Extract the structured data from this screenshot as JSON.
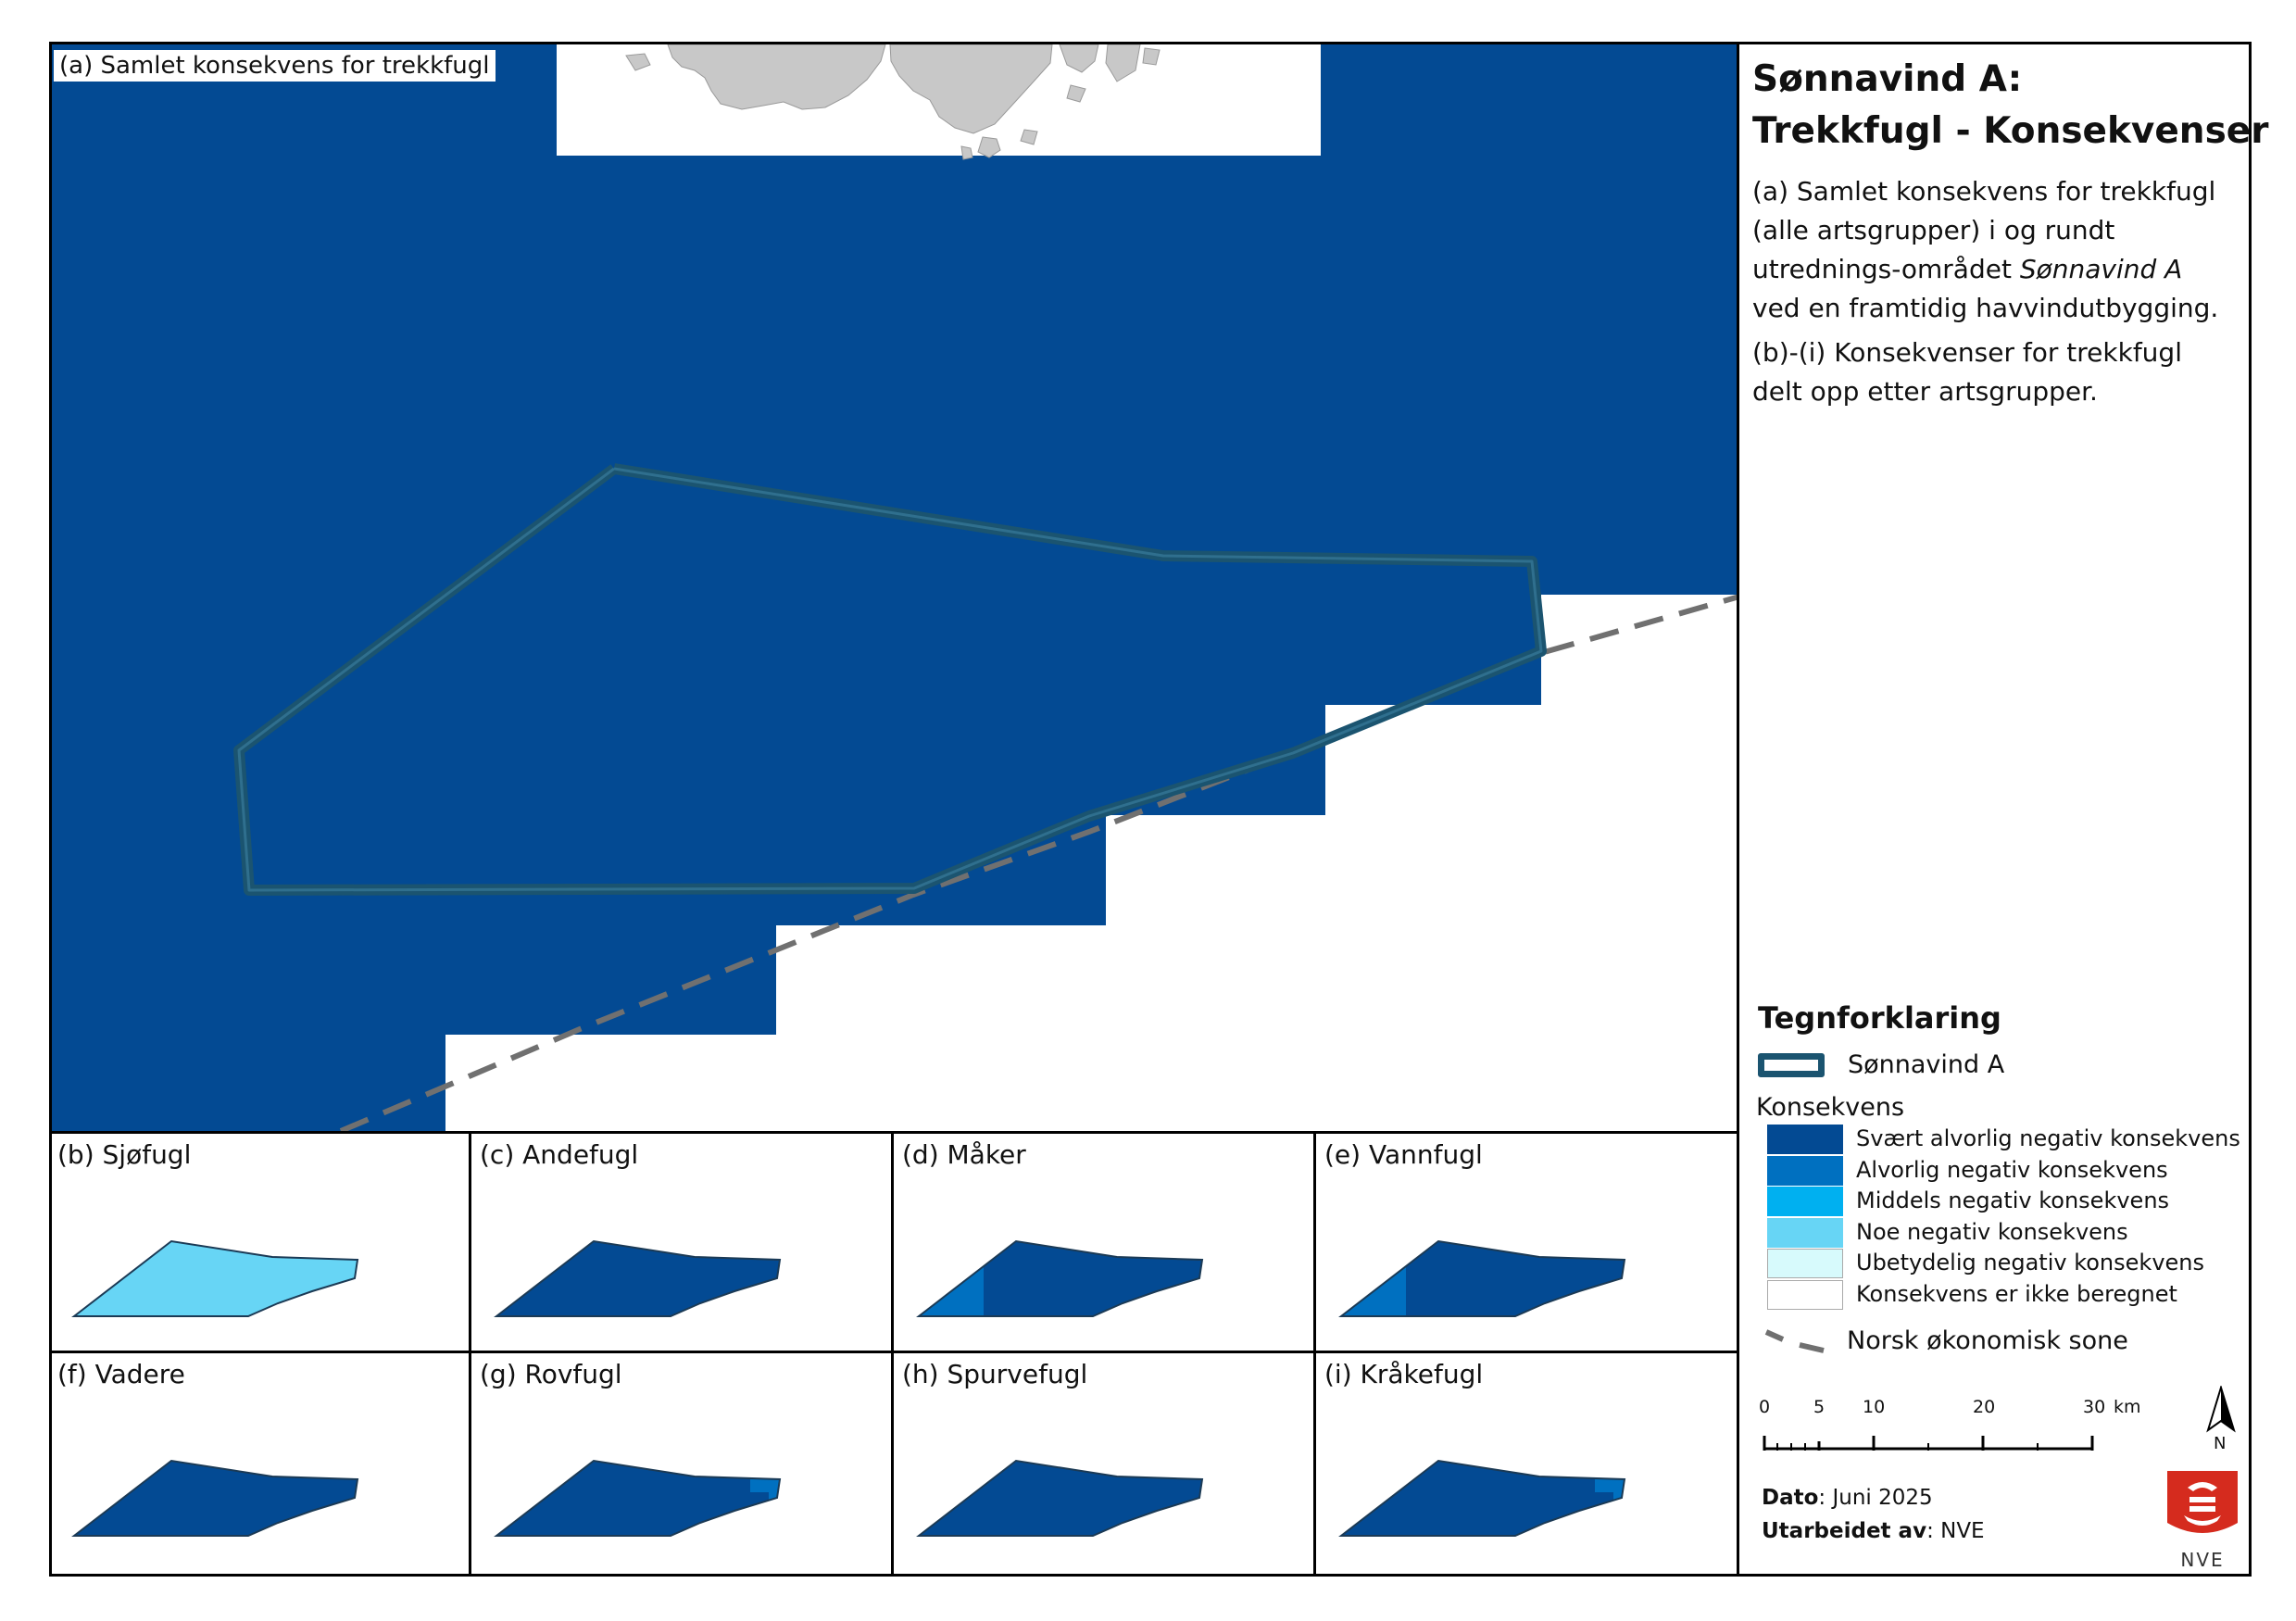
{
  "title_line1": "Sønnavind A:",
  "title_line2": "Trekkfugl - Konsekvenser",
  "description": {
    "p1_part1": "(a) Samlet konsekvens for trekkfugl (alle artsgrupper) i og rundt utrednings-området ",
    "p1_italic": "Sønnavind A",
    "p1_part2": " ved en framtidig havvindutbygging.",
    "p2": "(b)-(i) Konsekvenser for trekkfugl delt opp etter artsgrupper."
  },
  "main_panel_label": "(a) Samlet konsekvens for trekkfugl",
  "panels": [
    {
      "label": "(b) Sjøfugl",
      "fill": "noe"
    },
    {
      "label": "(c) Andefugl",
      "fill": "svaert"
    },
    {
      "label": "(d) Måker",
      "fill": "svaert",
      "west_band": "alvorlig"
    },
    {
      "label": "(e) Vannfugl",
      "fill": "svaert",
      "west_band": "alvorlig"
    },
    {
      "label": "(f) Vadere",
      "fill": "svaert"
    },
    {
      "label": "(g) Rovfugl",
      "fill": "svaert",
      "east_patch": "alvorlig"
    },
    {
      "label": "(h) Spurvefugl",
      "fill": "svaert"
    },
    {
      "label": "(i) Kråkefugl",
      "fill": "svaert",
      "east_patch": "alvorlig"
    }
  ],
  "legend": {
    "title": "Tegnforklaring",
    "area_label": "Sønnavind A",
    "konsekvens_header": "Konsekvens",
    "classes": [
      {
        "key": "svaert",
        "label": "Svært alvorlig negativ konsekvens",
        "color": "#034A93"
      },
      {
        "key": "alvorlig",
        "label": "Alvorlig negativ konsekvens",
        "color": "#0070C0"
      },
      {
        "key": "middels",
        "label": "Middels negativ konsekvens",
        "color": "#00B0F0"
      },
      {
        "key": "noe",
        "label": "Noe negativ konsekvens",
        "color": "#67D5F5"
      },
      {
        "key": "ubetydelig",
        "label": "Ubetydelig negativ konsekvens",
        "color": "#D7FAFC"
      },
      {
        "key": "ikke",
        "label": "Konsekvens er ikke beregnet",
        "color": "#FFFFFF"
      }
    ],
    "eez_label": "Norsk økonomisk sone"
  },
  "scalebar": {
    "ticks": [
      "0",
      "5",
      "10",
      "20",
      "30"
    ],
    "unit": "km"
  },
  "north_label": "N",
  "meta": {
    "date_label": "Dato",
    "date_value": ": Juni 2025",
    "author_label": "Utarbeidet av",
    "author_value": ": NVE"
  },
  "logo_text": "NVE",
  "colors": {
    "area_outline": "#1B5470",
    "eez_line": "#707070",
    "land": "#C8C8C8"
  }
}
